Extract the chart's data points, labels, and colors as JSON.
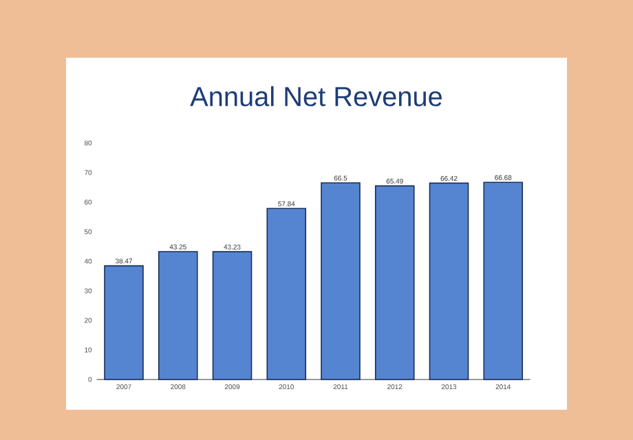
{
  "chart_data": {
    "type": "bar",
    "title": "Annual Net Revenue",
    "categories": [
      "2007",
      "2008",
      "2009",
      "2010",
      "2011",
      "2012",
      "2013",
      "2014"
    ],
    "values": [
      38.47,
      43.25,
      43.23,
      57.84,
      66.5,
      65.49,
      66.42,
      66.68
    ],
    "value_labels": [
      "38.47",
      "43.25",
      "43.23",
      "57.84",
      "66.5",
      "65.49",
      "66.42",
      "66.68"
    ],
    "color": "#5585d0",
    "ylim": [
      0,
      80
    ],
    "yticks": [
      0,
      10,
      20,
      30,
      40,
      50,
      60,
      70,
      80
    ],
    "grid": false
  }
}
